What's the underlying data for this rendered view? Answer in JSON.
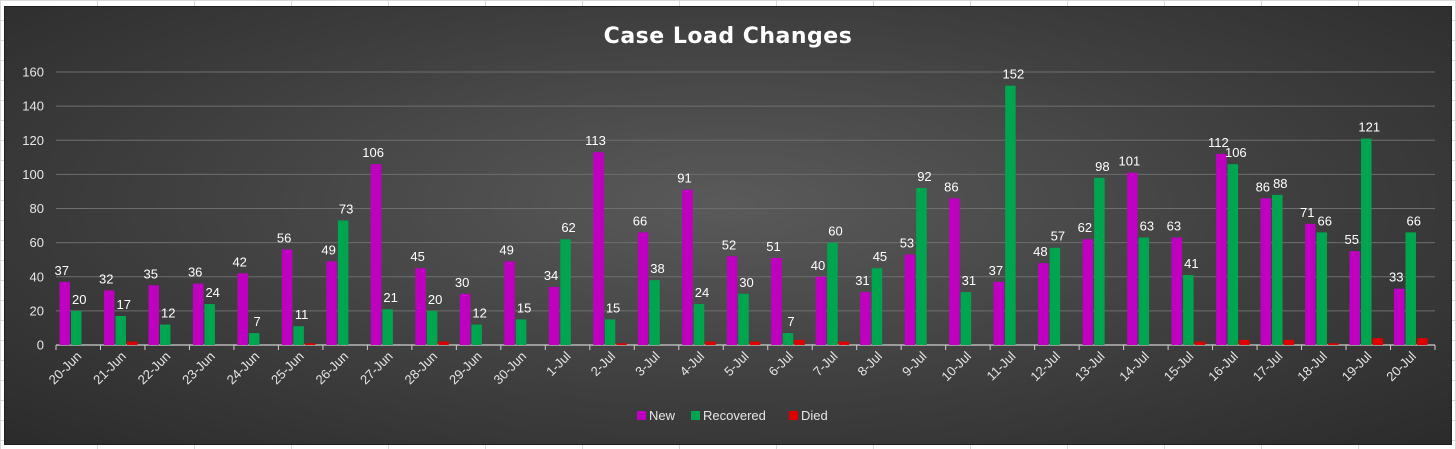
{
  "chart_data": {
    "type": "bar",
    "title": "Case Load Changes",
    "xlabel": "",
    "ylabel": "",
    "ylim": [
      0,
      160
    ],
    "yticks": [
      0,
      20,
      40,
      60,
      80,
      100,
      120,
      140,
      160
    ],
    "grid": true,
    "legend_position": "bottom",
    "categories": [
      "20-Jun",
      "21-Jun",
      "22-Jun",
      "23-Jun",
      "24-Jun",
      "25-Jun",
      "26-Jun",
      "27-Jun",
      "28-Jun",
      "29-Jun",
      "30-Jun",
      "1-Jul",
      "2-Jul",
      "3-Jul",
      "4-Jul",
      "5-Jul",
      "6-Jul",
      "7-Jul",
      "8-Jul",
      "9-Jul",
      "10-Jul",
      "11-Jul",
      "12-Jul",
      "13-Jul",
      "14-Jul",
      "15-Jul",
      "16-Jul",
      "17-Jul",
      "18-Jul",
      "19-Jul",
      "20-Jul"
    ],
    "series": [
      {
        "name": "New",
        "color": "#c000c0",
        "show_labels": true,
        "values": [
          37,
          32,
          35,
          36,
          42,
          56,
          49,
          106,
          45,
          30,
          49,
          34,
          113,
          66,
          91,
          52,
          51,
          40,
          31,
          53,
          86,
          37,
          48,
          62,
          101,
          63,
          112,
          86,
          71,
          55,
          33
        ]
      },
      {
        "name": "Recovered",
        "color": "#00a550",
        "show_labels": true,
        "values": [
          20,
          17,
          12,
          24,
          7,
          11,
          73,
          21,
          20,
          12,
          15,
          62,
          15,
          38,
          24,
          30,
          7,
          60,
          45,
          92,
          31,
          152,
          57,
          98,
          63,
          41,
          106,
          88,
          66,
          121,
          66
        ]
      },
      {
        "name": "Died",
        "color": "#e00000",
        "show_labels": false,
        "values": [
          0,
          2,
          0,
          0,
          0,
          1,
          0,
          0,
          2,
          0,
          0,
          0,
          1,
          0,
          2,
          2,
          3,
          2,
          0,
          0,
          0,
          0,
          0,
          0,
          0,
          2,
          3,
          3,
          1,
          4,
          4
        ]
      }
    ]
  }
}
